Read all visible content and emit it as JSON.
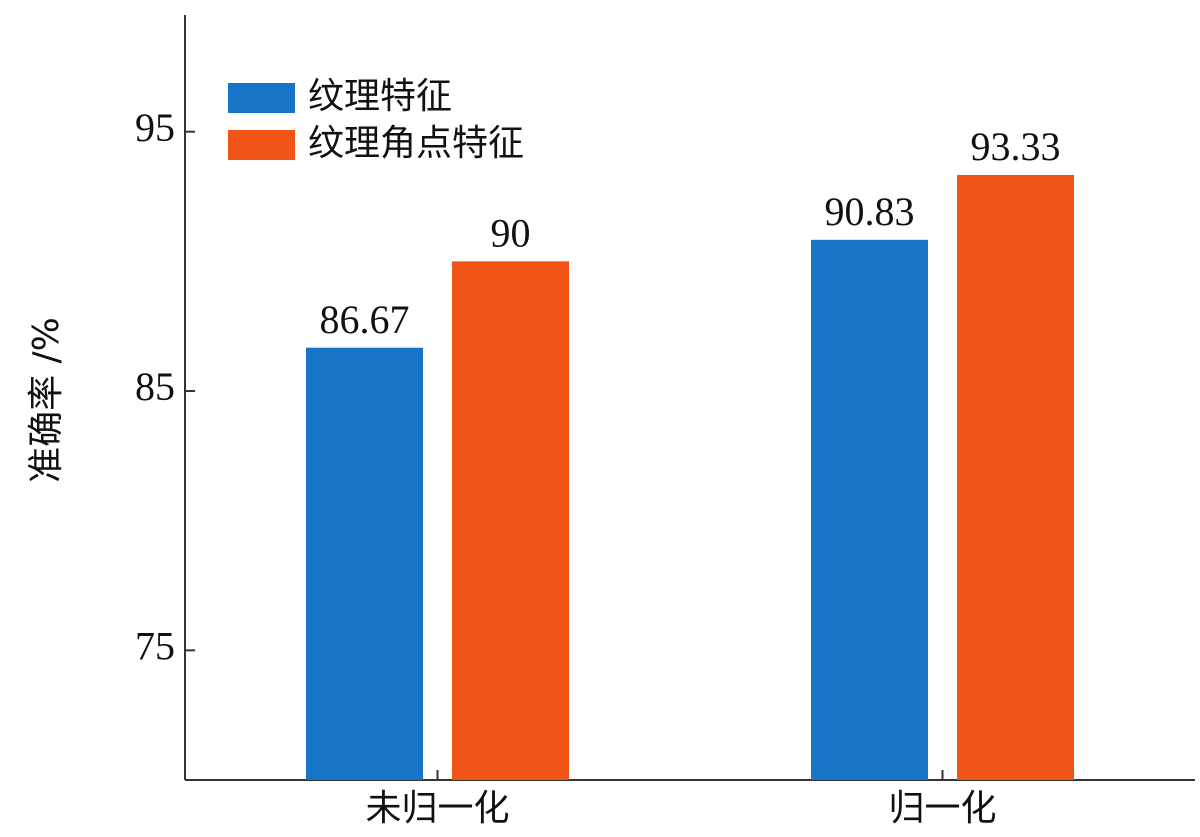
{
  "chart_data": {
    "type": "bar",
    "y_label": "准确率 /%",
    "categories": [
      "未归一化",
      "归一化"
    ],
    "series": [
      {
        "name": "纹理特征",
        "color": "#1874c9",
        "values": [
          86.67,
          90.83
        ]
      },
      {
        "name": "纹理角点特征",
        "color": "#f05416",
        "values": [
          90,
          93.33
        ]
      }
    ],
    "ylim": [
      70,
      99.5
    ],
    "yticks": [
      75,
      85,
      95
    ],
    "grid": false,
    "legend": "top-left"
  }
}
